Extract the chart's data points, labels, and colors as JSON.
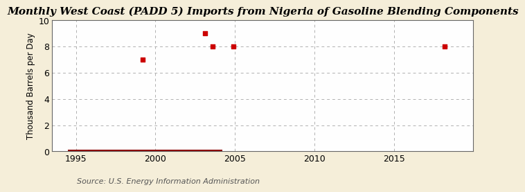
{
  "title": "Monthly West Coast (PADD 5) Imports from Nigeria of Gasoline Blending Components",
  "ylabel": "Thousand Barrels per Day",
  "source": "Source: U.S. Energy Information Administration",
  "background_color": "#f5eed9",
  "plot_background": "#fefefe",
  "marker_color": "#cc0000",
  "line_color": "#8b0000",
  "xlim": [
    1993.5,
    2020
  ],
  "ylim": [
    0,
    10
  ],
  "xticks": [
    1995,
    2000,
    2005,
    2010,
    2015
  ],
  "yticks": [
    0,
    2,
    4,
    6,
    8,
    10
  ],
  "scatter_x": [
    1999.2,
    2003.1,
    2003.6,
    2004.9,
    2018.2
  ],
  "scatter_y": [
    7.0,
    9.0,
    8.0,
    8.0,
    8.0
  ],
  "line_x_start": 1994.5,
  "line_x_end": 2004.2,
  "line_y": 0.0,
  "title_fontsize": 11,
  "label_fontsize": 8.5,
  "tick_fontsize": 9,
  "source_fontsize": 8
}
